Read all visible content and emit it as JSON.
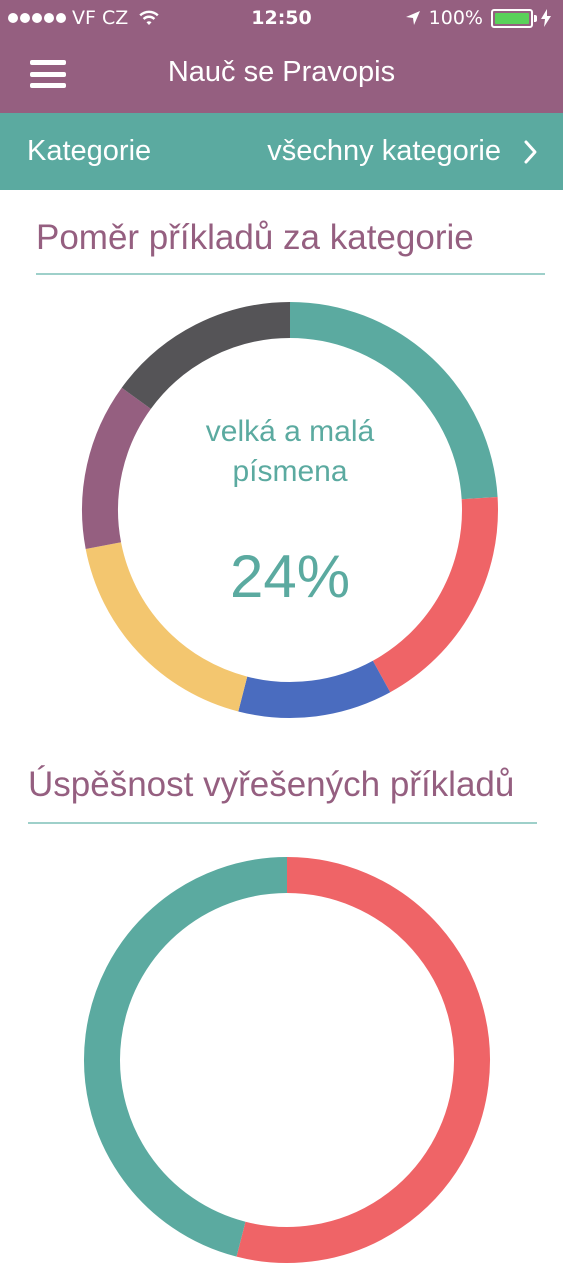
{
  "status_bar": {
    "carrier": "VF CZ",
    "time": "12:50",
    "battery_percent": "100%",
    "signal_dots": 5
  },
  "nav": {
    "title": "Nauč se Pravopis",
    "menu_icon": "hamburger-menu-icon"
  },
  "category_bar": {
    "label": "Kategorie",
    "value": "všechny kategorie",
    "chevron_icon": "chevron-right-icon"
  },
  "section1": {
    "title": "Poměr příkladů za kategorie",
    "center_label_line1": "velká a malá",
    "center_label_line2": "písmena",
    "center_value": "24%"
  },
  "section2": {
    "title": "Úspěšnost vyřešených příkladů"
  },
  "colors": {
    "header_purple": "#955f80",
    "teal": "#5baaa0",
    "red": "#ef6467",
    "blue": "#4a6cbf",
    "yellow": "#f3c66f",
    "purple": "#955f80",
    "dark_gray": "#555457"
  },
  "chart_data": [
    {
      "type": "pie",
      "title": "Poměr příkladů za kategorie",
      "series": [
        {
          "value": 24,
          "color": "#5baaa0"
        },
        {
          "value": 18,
          "color": "#ef6467"
        },
        {
          "value": 12,
          "color": "#4a6cbf"
        },
        {
          "value": 18,
          "color": "#f3c66f"
        },
        {
          "value": 13,
          "color": "#955f80"
        },
        {
          "value": 15,
          "color": "#555457"
        }
      ],
      "highlighted_label": "velká a malá písmena",
      "highlighted_value": "24%"
    },
    {
      "type": "pie",
      "title": "Úspěšnost vyřešených příkladů",
      "series": [
        {
          "value": 54,
          "color": "#ef6467"
        },
        {
          "value": 46,
          "color": "#5baaa0"
        }
      ]
    }
  ]
}
